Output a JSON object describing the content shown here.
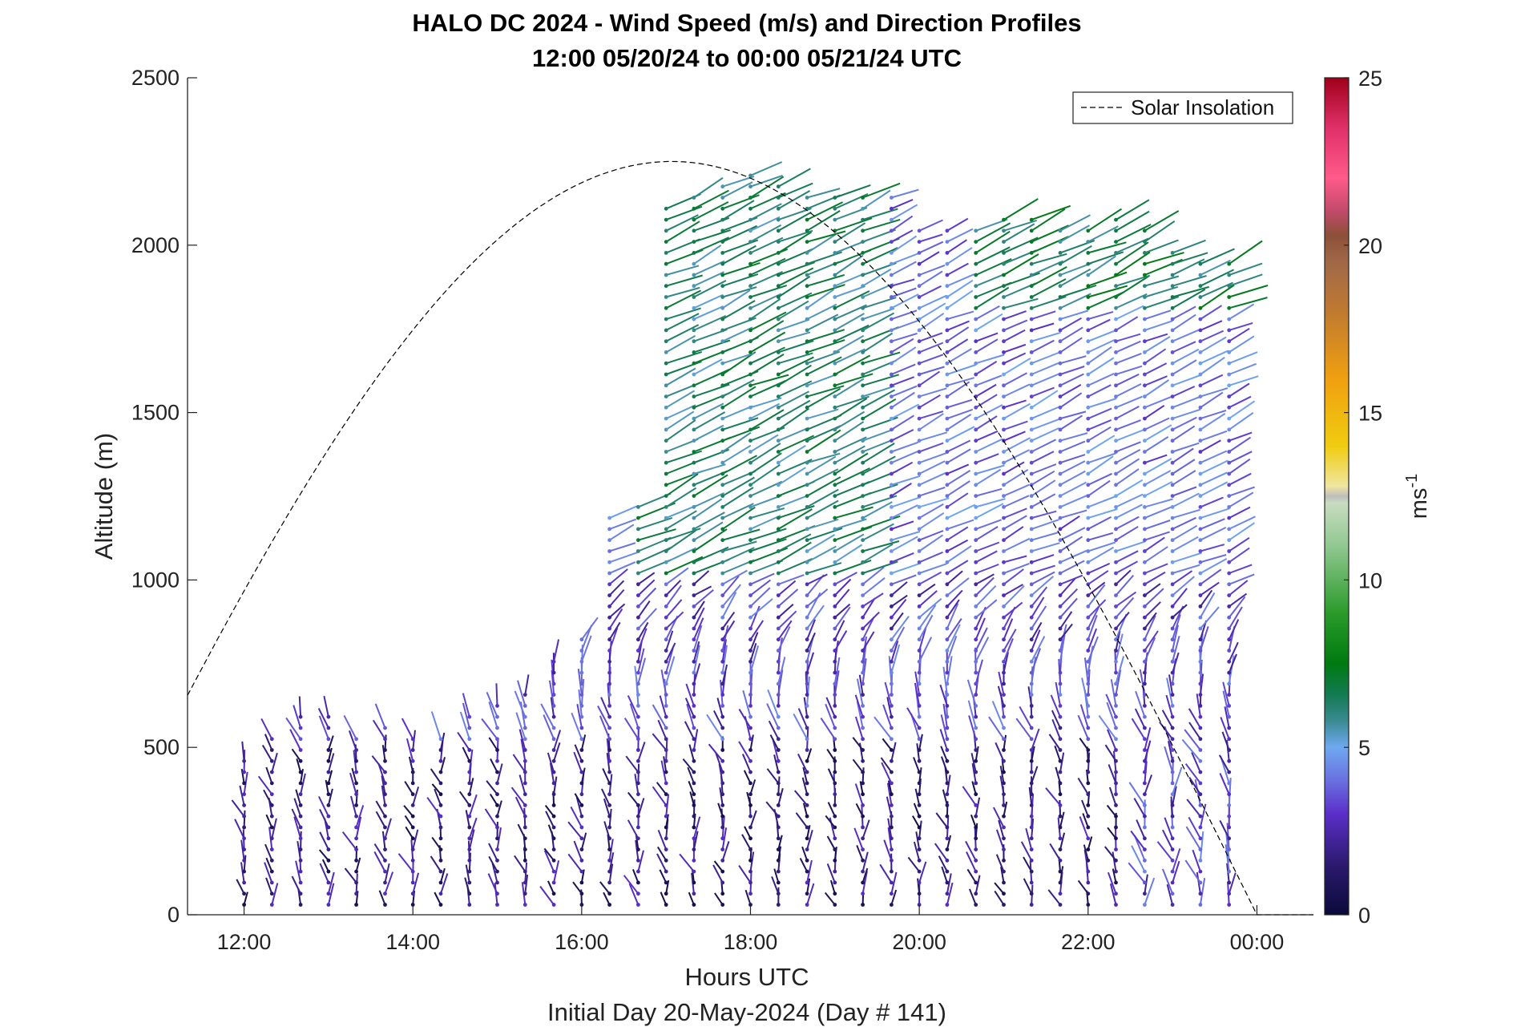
{
  "chart_data": {
    "type": "scatter",
    "title_line1": "HALO DC 2024 - Wind Speed (m/s) and Direction Profiles",
    "title_line2": "12:00 05/20/24 to 00:00 05/21/24  UTC",
    "xlabel": "Hours UTC",
    "xlabel2": "Initial Day 20-May-2024 (Day # 141)",
    "ylabel": "Altitude (m)",
    "xlim_hours": [
      11.33,
      24.67
    ],
    "ylim": [
      0,
      2500
    ],
    "x_ticks": [
      {
        "value": 12,
        "label": "12:00"
      },
      {
        "value": 14,
        "label": "14:00"
      },
      {
        "value": 16,
        "label": "16:00"
      },
      {
        "value": 18,
        "label": "18:00"
      },
      {
        "value": 20,
        "label": "20:00"
      },
      {
        "value": 22,
        "label": "22:00"
      },
      {
        "value": 24,
        "label": "00:00"
      }
    ],
    "y_ticks": [
      0,
      500,
      1000,
      1500,
      2000,
      2500
    ],
    "legend": {
      "entries": [
        "Solar Insolation"
      ],
      "placement": "top-right"
    },
    "colorbar": {
      "label": "ms",
      "label_superscript": "-1",
      "range": [
        0,
        25
      ],
      "ticks": [
        0,
        5,
        10,
        15,
        20,
        25
      ],
      "stops": [
        {
          "v": 0,
          "c": "#0a0a3a"
        },
        {
          "v": 1.5,
          "c": "#2c1a6e"
        },
        {
          "v": 3,
          "c": "#5a2ec8"
        },
        {
          "v": 4,
          "c": "#6a70e0"
        },
        {
          "v": 5,
          "c": "#6fa8f0"
        },
        {
          "v": 5.8,
          "c": "#3a8a90"
        },
        {
          "v": 6.6,
          "c": "#127a50"
        },
        {
          "v": 7.5,
          "c": "#007a10"
        },
        {
          "v": 9,
          "c": "#2a9a2a"
        },
        {
          "v": 11,
          "c": "#90c890"
        },
        {
          "v": 12.3,
          "c": "#c8dcc0"
        },
        {
          "v": 12.5,
          "c": "#bdbdbd"
        },
        {
          "v": 12.8,
          "c": "#f0e6a0"
        },
        {
          "v": 14,
          "c": "#f0cc10"
        },
        {
          "v": 16,
          "c": "#f0a010"
        },
        {
          "v": 18,
          "c": "#c07a30"
        },
        {
          "v": 19.5,
          "c": "#a06848"
        },
        {
          "v": 20.3,
          "c": "#8c5038"
        },
        {
          "v": 21,
          "c": "#c04a6a"
        },
        {
          "v": 22,
          "c": "#ff5a8a"
        },
        {
          "v": 23.5,
          "c": "#e0306a"
        },
        {
          "v": 25,
          "c": "#a0001a"
        }
      ]
    },
    "solar_insolation": {
      "name": "Solar Insolation",
      "sunrise_hours": 10.0,
      "noon_hours": 17.07,
      "sunset_hours": 24.0,
      "peak_altitude_m": 2250,
      "night_tail_end_hours": 24.67
    },
    "wind_profiles": {
      "times_hours": [
        12.0,
        12.33,
        12.67,
        13.0,
        13.33,
        13.67,
        14.0,
        14.33,
        14.67,
        15.0,
        15.33,
        15.67,
        16.0,
        16.33,
        16.67,
        17.0,
        17.33,
        17.67,
        18.0,
        18.33,
        18.67,
        19.0,
        19.33,
        19.67,
        20.0,
        20.33,
        20.67,
        21.0,
        21.33,
        21.67,
        22.0,
        22.33,
        22.67,
        23.0,
        23.33,
        23.67
      ],
      "bottom_alt_m": 30,
      "range_gate_m": 33,
      "top_alt_m": [
        480,
        540,
        610,
        600,
        550,
        590,
        550,
        550,
        600,
        640,
        680,
        780,
        830,
        1200,
        1250,
        2140,
        2170,
        2200,
        2210,
        2200,
        2150,
        2150,
        2150,
        2160,
        2060,
        2050,
        2050,
        2080,
        2100,
        2050,
        2050,
        2100,
        2050,
        2000,
        1950,
        1950
      ],
      "min_speed_ms": 0.5,
      "max_speed_ms": 7.5,
      "typical_low_level_speed_ms": 3,
      "low_level_direction": "north-northwesterly",
      "upper_level_direction": "southwesterly to westerly"
    }
  }
}
